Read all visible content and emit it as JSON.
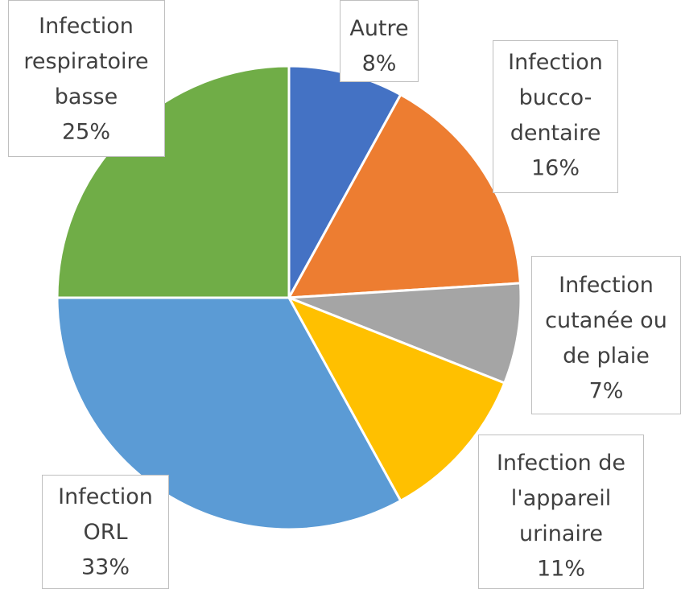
{
  "chart_data": {
    "type": "pie",
    "categories": [
      "Autre",
      "Infection\nbucco-\ndentaire",
      "Infection\ncutanée ou\nde plaie",
      "Infection de\nl'appareil\nurinaire",
      "Infection\nORL",
      "Infection\nrespiratoire\nbasse"
    ],
    "values": [
      8,
      16,
      7,
      11,
      33,
      25
    ],
    "value_labels": [
      "8%",
      "16%",
      "7%",
      "11%",
      "33%",
      "25%"
    ],
    "colors": [
      "#4472c4",
      "#ed7d31",
      "#a5a5a5",
      "#ffc000",
      "#5b9bd5",
      "#70ad47"
    ]
  }
}
